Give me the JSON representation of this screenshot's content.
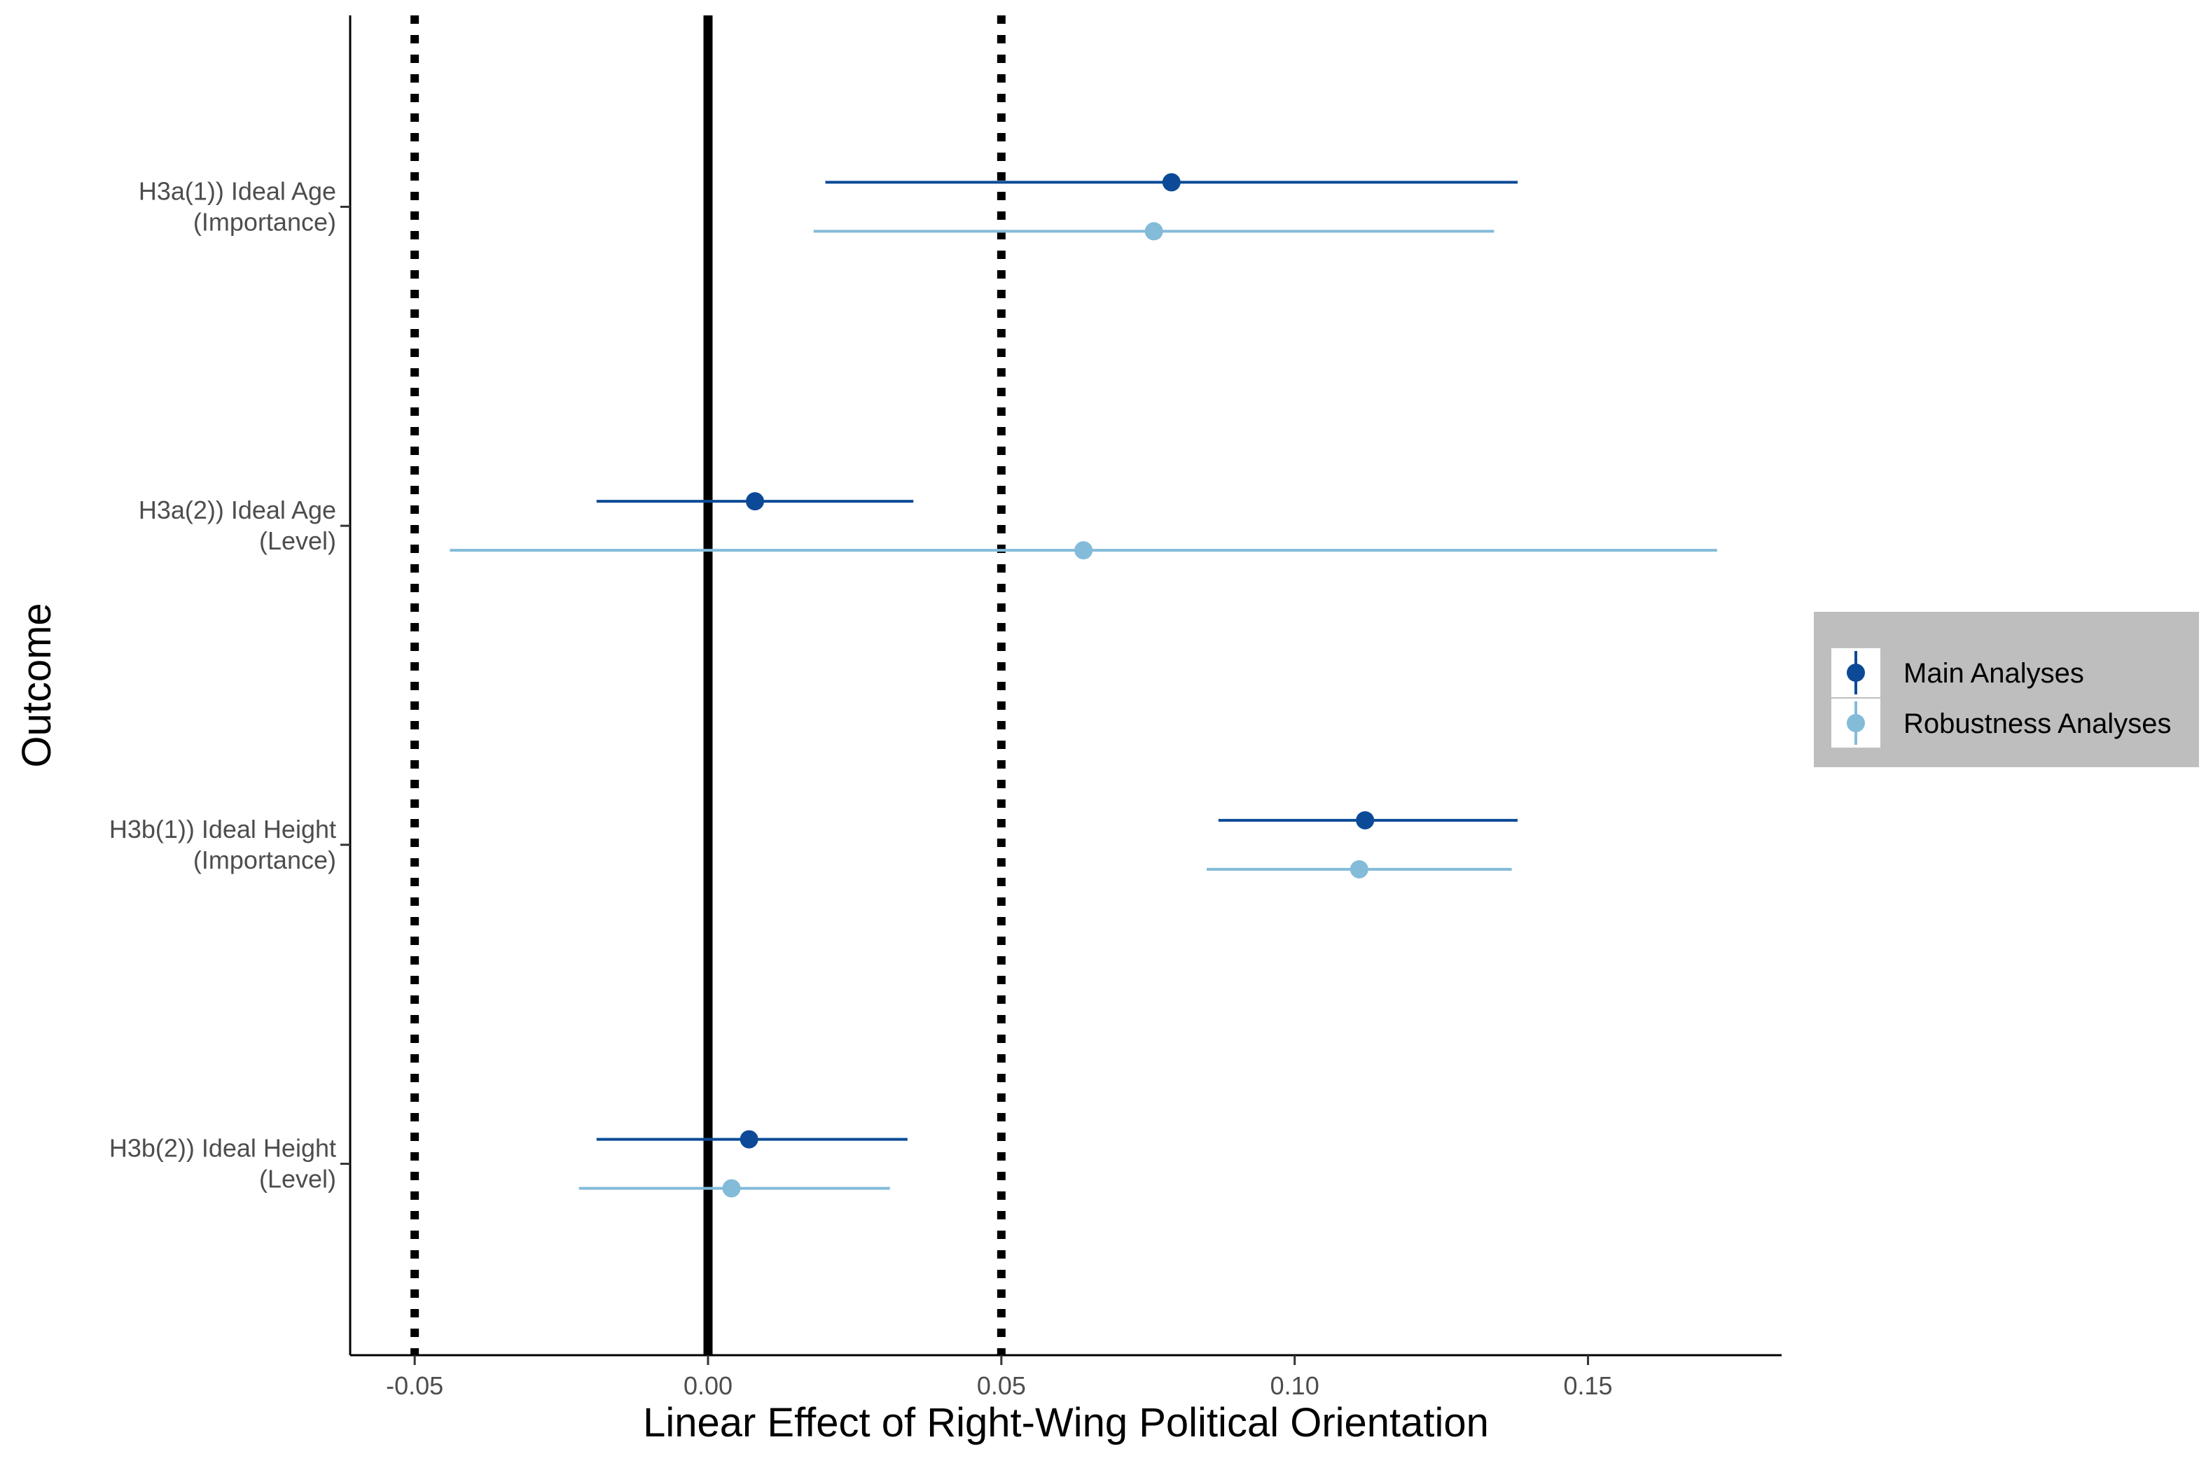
{
  "chart_data": {
    "type": "forest",
    "title": "",
    "xlabel": "Linear Effect of Right-Wing Political Orientation",
    "ylabel": "Outcome",
    "xlim": [
      -0.061,
      0.183
    ],
    "x_ticks": [
      -0.05,
      0.0,
      0.05,
      0.1,
      0.15
    ],
    "x_tick_labels": [
      "-0.05",
      "0.00",
      "0.05",
      "0.10",
      "0.15"
    ],
    "reference_lines": {
      "solid": [
        0.0
      ],
      "dotted": [
        -0.05,
        0.05
      ]
    },
    "grid": false,
    "legend_position": "right",
    "categories": [
      [
        "H3a(1)) Ideal Age",
        "(Importance)"
      ],
      [
        "H3a(2)) Ideal Age",
        "(Level)"
      ],
      [
        "H3b(1)) Ideal Height",
        "(Importance)"
      ],
      [
        "H3b(2)) Ideal Height",
        "(Level)"
      ]
    ],
    "series": [
      {
        "name": "Main Analyses",
        "color": "#0c4a97",
        "points": [
          {
            "estimate": 0.079,
            "low": 0.02,
            "high": 0.138
          },
          {
            "estimate": 0.008,
            "low": -0.019,
            "high": 0.035
          },
          {
            "estimate": 0.112,
            "low": 0.087,
            "high": 0.138
          },
          {
            "estimate": 0.007,
            "low": -0.019,
            "high": 0.034
          }
        ]
      },
      {
        "name": "Robustness Analyses",
        "color": "#83bbd9",
        "points": [
          {
            "estimate": 0.076,
            "low": 0.018,
            "high": 0.134
          },
          {
            "estimate": 0.064,
            "low": -0.044,
            "high": 0.172
          },
          {
            "estimate": 0.111,
            "low": 0.085,
            "high": 0.137
          },
          {
            "estimate": 0.004,
            "low": -0.022,
            "high": 0.031
          }
        ]
      }
    ]
  }
}
